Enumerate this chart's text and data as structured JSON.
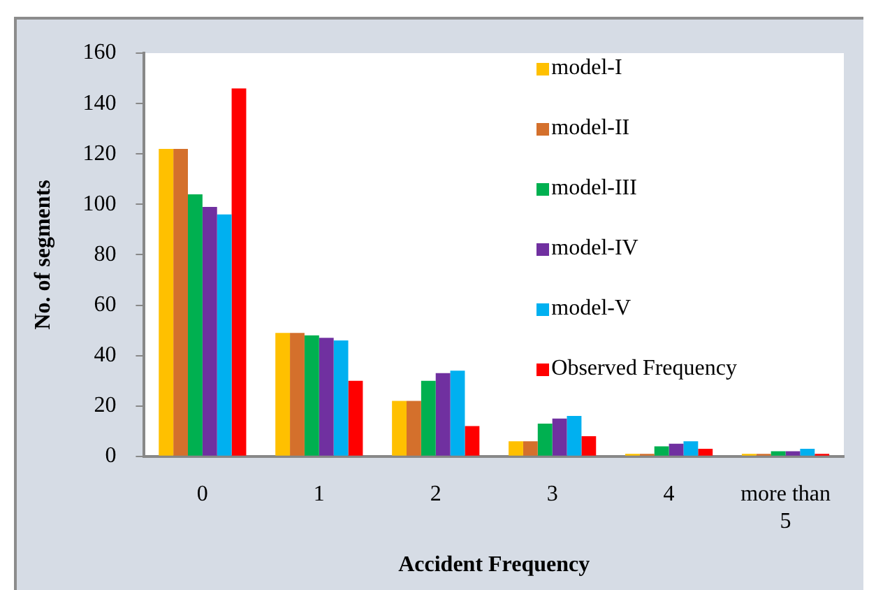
{
  "chart_data": {
    "type": "bar",
    "xlabel": "Accident Frequency",
    "ylabel": "No. of segments",
    "categories": [
      "0",
      "1",
      "2",
      "3",
      "4",
      "more than 5"
    ],
    "series": [
      {
        "name": "model-I",
        "color": "#ffc000",
        "values": [
          122,
          49,
          22,
          6,
          1,
          1
        ]
      },
      {
        "name": "model-II",
        "color": "#d4702c",
        "values": [
          122,
          49,
          22,
          6,
          1,
          1
        ]
      },
      {
        "name": "model-III",
        "color": "#00b050",
        "values": [
          104,
          48,
          30,
          13,
          4,
          2
        ]
      },
      {
        "name": "model-IV",
        "color": "#7030a0",
        "values": [
          99,
          47,
          33,
          15,
          5,
          2
        ]
      },
      {
        "name": "model-V",
        "color": "#00b0f0",
        "values": [
          96,
          46,
          34,
          16,
          6,
          3
        ]
      },
      {
        "name": "Observed Frequency",
        "color": "#ff0000",
        "values": [
          146,
          30,
          12,
          8,
          3,
          1
        ]
      }
    ],
    "ylim": [
      0,
      160
    ],
    "yticks": [
      0,
      20,
      40,
      60,
      80,
      100,
      120,
      140,
      160
    ],
    "grid": false,
    "legend": "top right"
  }
}
